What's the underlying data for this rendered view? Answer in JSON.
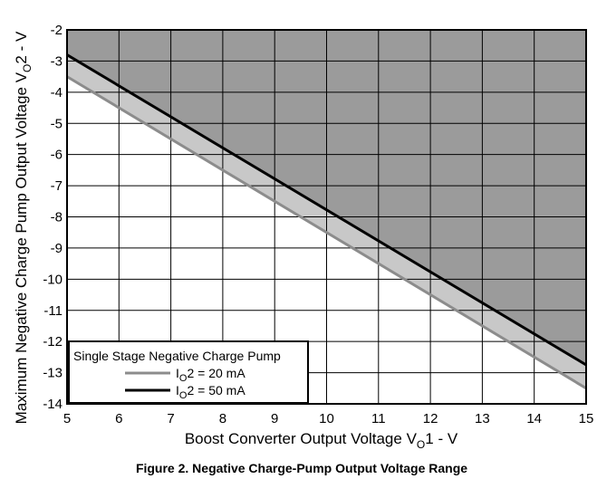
{
  "chart_data": {
    "type": "line",
    "title": "",
    "caption": "Figure 2. Negative Charge-Pump Output Voltage Range",
    "xlabel_main": "Boost Converter Output Voltage V",
    "xlabel_sub": "O",
    "xlabel_tail": "1 - V",
    "ylabel_main": "Maximum Negative Charge Pump Output Voltage V",
    "ylabel_sub": "O",
    "ylabel_tail": "2 - V",
    "xlim": [
      5,
      15
    ],
    "ylim": [
      -14,
      -2
    ],
    "x_ticks": [
      "5",
      "6",
      "7",
      "8",
      "9",
      "10",
      "11",
      "12",
      "13",
      "14",
      "15"
    ],
    "y_ticks": [
      "-2",
      "-3",
      "-4",
      "-5",
      "-6",
      "-7",
      "-8",
      "-9",
      "-10",
      "-11",
      "-12",
      "-13",
      "-14"
    ],
    "grid": true,
    "legend": {
      "title": "Single Stage Negative Charge Pump",
      "placement": "bottom-left"
    },
    "series": [
      {
        "name_main": "I",
        "name_sub": "O",
        "name_tail": "2 = 20 mA",
        "color": "#8c8c8c",
        "x": [
          5,
          15
        ],
        "y": [
          -3.5,
          -13.5
        ]
      },
      {
        "name_main": "I",
        "name_sub": "O",
        "name_tail": "2 = 50 mA",
        "color": "#000000",
        "x": [
          5,
          15
        ],
        "y": [
          -2.8,
          -12.75
        ]
      }
    ],
    "colors": {
      "region_dark": "#9b9b9b",
      "region_light": "#c8c8c8",
      "grid": "#000000"
    }
  }
}
